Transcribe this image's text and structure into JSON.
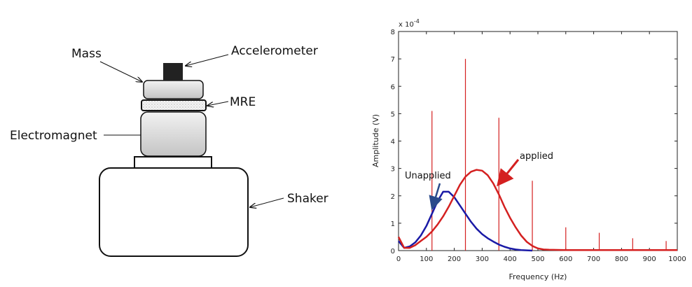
{
  "diagram": {
    "labels": [
      "Mass",
      "Accelerometer",
      "MRE",
      "Electromagnet",
      "Shaker"
    ]
  },
  "chart_data": {
    "type": "line",
    "x_label": "Frequency (Hz)",
    "y_label": "Amplitude (V)",
    "y_multiplier": {
      "base": "x 10",
      "exponent": "-4"
    },
    "xlim": [
      0,
      1000
    ],
    "xticks": [
      0,
      100,
      200,
      300,
      400,
      500,
      600,
      700,
      800,
      900,
      1000
    ],
    "ylim": [
      0,
      8
    ],
    "yticks": [
      0,
      1,
      2,
      3,
      4,
      5,
      6,
      7,
      8
    ],
    "grid": false,
    "series": [
      {
        "name": "Unapplied",
        "color": "#1a1aa6",
        "x": [
          0,
          20,
          40,
          60,
          80,
          100,
          120,
          140,
          160,
          180,
          200,
          220,
          240,
          260,
          280,
          300,
          320,
          340,
          360,
          380,
          400,
          420,
          440,
          460,
          480
        ],
        "values": [
          0.35,
          0.1,
          0.15,
          0.3,
          0.55,
          0.9,
          1.35,
          1.8,
          2.15,
          2.15,
          1.95,
          1.65,
          1.35,
          1.05,
          0.8,
          0.6,
          0.45,
          0.33,
          0.22,
          0.14,
          0.08,
          0.04,
          0.02,
          0.01,
          0
        ]
      },
      {
        "name": "applied",
        "color": "#d42020",
        "x": [
          0,
          20,
          40,
          60,
          80,
          100,
          120,
          140,
          160,
          180,
          200,
          220,
          240,
          260,
          280,
          300,
          320,
          340,
          360,
          380,
          400,
          420,
          440,
          460,
          480,
          500,
          520,
          540,
          600,
          700,
          800,
          900,
          1000
        ],
        "values": [
          0.5,
          0.1,
          0.1,
          0.2,
          0.35,
          0.5,
          0.7,
          0.95,
          1.25,
          1.6,
          2.0,
          2.4,
          2.7,
          2.88,
          2.95,
          2.92,
          2.75,
          2.45,
          2.05,
          1.6,
          1.2,
          0.85,
          0.55,
          0.32,
          0.17,
          0.08,
          0.04,
          0.03,
          0.02,
          0.02,
          0.02,
          0.02,
          0.02
        ]
      }
    ],
    "spikes": {
      "color": "#d42020",
      "x": [
        120,
        240,
        360,
        480,
        600,
        720,
        840,
        960
      ],
      "values": [
        5.1,
        7.0,
        4.85,
        2.55,
        0.85,
        0.65,
        0.45,
        0.35
      ]
    },
    "annotations": [
      {
        "text": "Unapplied"
      },
      {
        "text": "applied"
      }
    ]
  }
}
